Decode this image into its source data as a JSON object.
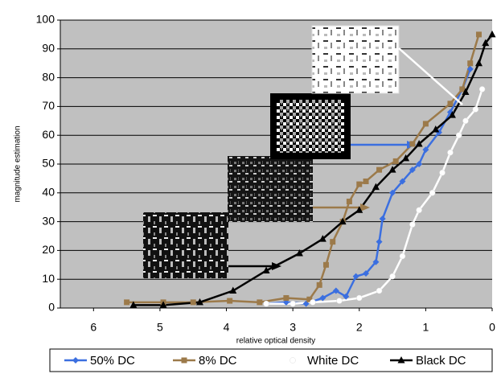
{
  "chart_data": {
    "type": "line",
    "y_label": "magnitude estimation",
    "x_label": "relative optical density",
    "xlim": [
      6.5,
      0
    ],
    "ylim": [
      0,
      100
    ],
    "xticks": [
      6,
      5,
      4,
      3,
      2,
      1,
      0
    ],
    "yticks": [
      0,
      10,
      20,
      30,
      40,
      50,
      60,
      70,
      80,
      90,
      100
    ],
    "grid": true,
    "legend": "bottom",
    "series": [
      {
        "name": "50% DC",
        "color": "#3b6fe0",
        "marker": "diamond",
        "x": [
          3.4,
          3.1,
          2.8,
          2.55,
          2.35,
          2.2,
          2.05,
          1.9,
          1.75,
          1.7,
          1.65,
          1.5,
          1.35,
          1.2,
          1.1,
          1.0,
          0.8,
          0.63,
          0.45,
          0.33
        ],
        "values": [
          1.5,
          2,
          1.5,
          3.5,
          6,
          4,
          11,
          12,
          16,
          23,
          31,
          40,
          44,
          48,
          50,
          55,
          61,
          68,
          76,
          83
        ]
      },
      {
        "name": "8% DC",
        "color": "#9c7a4a",
        "marker": "square",
        "x": [
          5.5,
          4.95,
          4.5,
          3.95,
          3.5,
          3.1,
          2.75,
          2.6,
          2.5,
          2.4,
          2.25,
          2.15,
          2.0,
          1.9,
          1.7,
          1.45,
          1.2,
          1.0,
          0.63,
          0.45,
          0.33,
          0.2
        ],
        "values": [
          2,
          2,
          2,
          2.5,
          2,
          3.5,
          3,
          8,
          15,
          23,
          30,
          37,
          43,
          44,
          48,
          51,
          57,
          64,
          71,
          76,
          85,
          95
        ]
      },
      {
        "name": "White DC",
        "color": "#ffffff",
        "marker": "circle",
        "x": [
          3.4,
          3.0,
          2.7,
          2.3,
          2.0,
          1.7,
          1.5,
          1.35,
          1.2,
          1.1,
          0.9,
          0.75,
          0.63,
          0.5,
          0.4,
          0.25,
          0.15
        ],
        "values": [
          1.5,
          1.5,
          2,
          2.5,
          3.5,
          6,
          11,
          18,
          29,
          34,
          40,
          47,
          54,
          60,
          65,
          69,
          76
        ]
      },
      {
        "name": "Black DC",
        "color": "#000000",
        "marker": "triangle",
        "x": [
          5.4,
          4.95,
          4.4,
          3.9,
          3.4,
          2.9,
          2.55,
          2.25,
          2.0,
          1.75,
          1.5,
          1.3,
          1.1,
          0.85,
          0.6,
          0.4,
          0.2,
          0.1,
          0.0
        ],
        "values": [
          1,
          1,
          2,
          6,
          13,
          19,
          24,
          30,
          34,
          42,
          48,
          52,
          57,
          62,
          67,
          75,
          85,
          92,
          95
        ]
      }
    ]
  }
}
